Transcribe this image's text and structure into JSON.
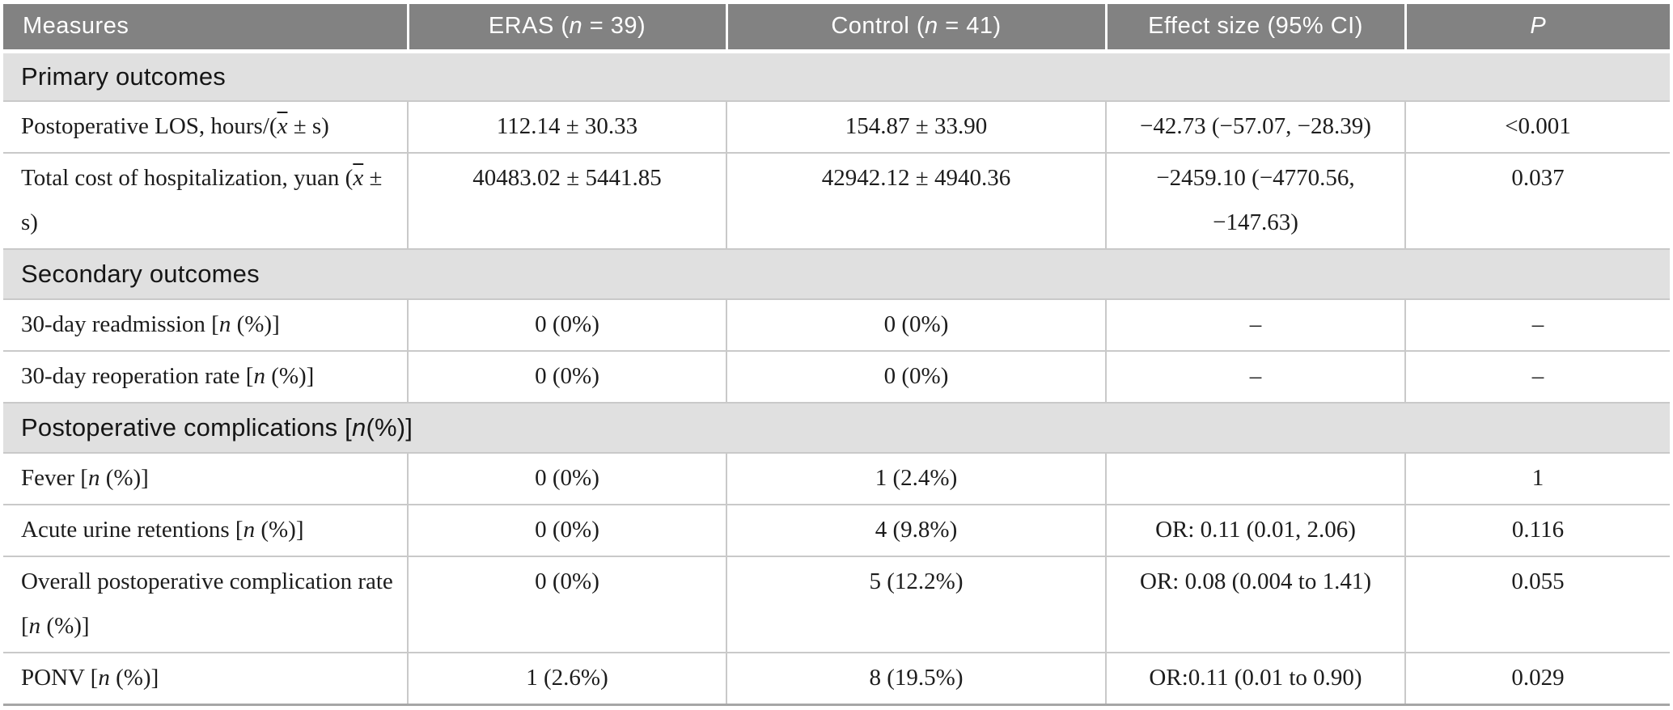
{
  "colors": {
    "header_bg": "#828282",
    "header_text": "#ffffff",
    "section_bg": "#e0e0e0",
    "border": "#c9c9c9",
    "body_text": "#1c1c1c",
    "bottom_border": "#a6a6a6"
  },
  "chart_data": {
    "type": "table",
    "columns": [
      "Measures",
      "ERAS (n = 39)",
      "Control (n = 41)",
      "Effect size (95% CI)",
      "P"
    ],
    "sections": [
      {
        "title": "Primary outcomes",
        "rows": [
          [
            "Postoperative LOS, hours/(x̄ ± s)",
            "112.14 ± 30.33",
            "154.87 ± 33.90",
            "−42.73 (−57.07, −28.39)",
            "<0.001"
          ],
          [
            "Total cost of hospitalization, yuan (x̄ ± s)",
            "40483.02 ± 5441.85",
            "42942.12 ± 4940.36",
            "−2459.10 (−4770.56, −147.63)",
            "0.037"
          ]
        ]
      },
      {
        "title": "Secondary outcomes",
        "rows": [
          [
            "30-day readmission [n (%)]",
            "0 (0%)",
            "0 (0%)",
            "–",
            "–"
          ],
          [
            "30-day reoperation rate [n (%)]",
            "0 (0%)",
            "0 (0%)",
            "–",
            "–"
          ]
        ]
      },
      {
        "title": "Postoperative complications [n(%)]",
        "rows": [
          [
            "Fever [n (%)]",
            "0 (0%)",
            "1 (2.4%)",
            "",
            "1"
          ],
          [
            "Acute urine retentions [n (%)]",
            "0 (0%)",
            "4 (9.8%)",
            "OR: 0.11 (0.01, 2.06)",
            "0.116"
          ],
          [
            "Overall postoperative complication rate [n (%)]",
            "0 (0%)",
            "5 (12.2%)",
            "OR: 0.08 (0.004 to 1.41)",
            "0.055"
          ],
          [
            "PONV [n (%)]",
            "1 (2.6%)",
            "8 (19.5%)",
            "OR:0.11 (0.01 to 0.90)",
            "0.029"
          ]
        ]
      }
    ]
  },
  "header": {
    "measures": [
      {
        "t": "Measures"
      }
    ],
    "eras": [
      {
        "t": "ERAS ("
      },
      {
        "t": "n",
        "s": "i"
      },
      {
        "t": " = 39)"
      }
    ],
    "control": [
      {
        "t": "Control ("
      },
      {
        "t": "n",
        "s": "i"
      },
      {
        "t": " = 41)"
      }
    ],
    "effect": [
      {
        "t": "Effect size (95% CI)"
      }
    ],
    "p": [
      {
        "t": "P",
        "s": "i"
      }
    ]
  },
  "rows": {
    "0": {
      "label": [
        {
          "t": "Primary outcomes"
        }
      ]
    },
    "1": {
      "measure": [
        {
          "t": "Postoperative LOS, hours/("
        },
        {
          "t": "x",
          "s": "o"
        },
        {
          "t": " ± s)"
        }
      ],
      "eras": "112.14 ± 30.33",
      "control": "154.87 ± 33.90",
      "effect": "−42.73 (−57.07, −28.39)",
      "p": "<0.001"
    },
    "2": {
      "measure": [
        {
          "t": "Total cost of hospitalization, yuan ("
        },
        {
          "t": "x",
          "s": "o"
        },
        {
          "t": " ± s)"
        }
      ],
      "eras": "40483.02 ± 5441.85",
      "control": "42942.12 ± 4940.36",
      "effect": "−2459.10 (−4770.56, −147.63)",
      "p": "0.037"
    },
    "3": {
      "label": [
        {
          "t": "Secondary outcomes"
        }
      ]
    },
    "4": {
      "measure": [
        {
          "t": "30-day readmission ["
        },
        {
          "t": "n",
          "s": "i"
        },
        {
          "t": " (%)]"
        }
      ],
      "eras": "0 (0%)",
      "control": "0 (0%)",
      "effect": "–",
      "p": "–"
    },
    "5": {
      "measure": [
        {
          "t": "30-day reoperation rate ["
        },
        {
          "t": "n",
          "s": "i"
        },
        {
          "t": " (%)]"
        }
      ],
      "eras": "0 (0%)",
      "control": "0 (0%)",
      "effect": "–",
      "p": "–"
    },
    "6": {
      "label": [
        {
          "t": "Postoperative complications ["
        },
        {
          "t": "n",
          "s": "i"
        },
        {
          "t": "(%)]"
        }
      ]
    },
    "7": {
      "measure": [
        {
          "t": "Fever ["
        },
        {
          "t": "n",
          "s": "i"
        },
        {
          "t": " (%)]"
        }
      ],
      "eras": "0 (0%)",
      "control": "1 (2.4%)",
      "effect": "",
      "p": "1"
    },
    "8": {
      "measure": [
        {
          "t": "Acute urine retentions ["
        },
        {
          "t": "n",
          "s": "i"
        },
        {
          "t": " (%)]"
        }
      ],
      "eras": "0 (0%)",
      "control": "4 (9.8%)",
      "effect": "OR: 0.11 (0.01, 2.06)",
      "p": "0.116"
    },
    "9": {
      "measure": [
        {
          "t": "Overall postoperative complication rate ["
        },
        {
          "t": "n",
          "s": "i"
        },
        {
          "t": " (%)]"
        }
      ],
      "eras": "0 (0%)",
      "control": "5 (12.2%)",
      "effect": "OR: 0.08 (0.004 to 1.41)",
      "p": "0.055"
    },
    "10": {
      "measure": [
        {
          "t": "PONV ["
        },
        {
          "t": "n",
          "s": "i"
        },
        {
          "t": " (%)]"
        }
      ],
      "eras": "1 (2.6%)",
      "control": "8 (19.5%)",
      "effect": "OR:0.11 (0.01 to 0.90)",
      "p": "0.029"
    }
  }
}
